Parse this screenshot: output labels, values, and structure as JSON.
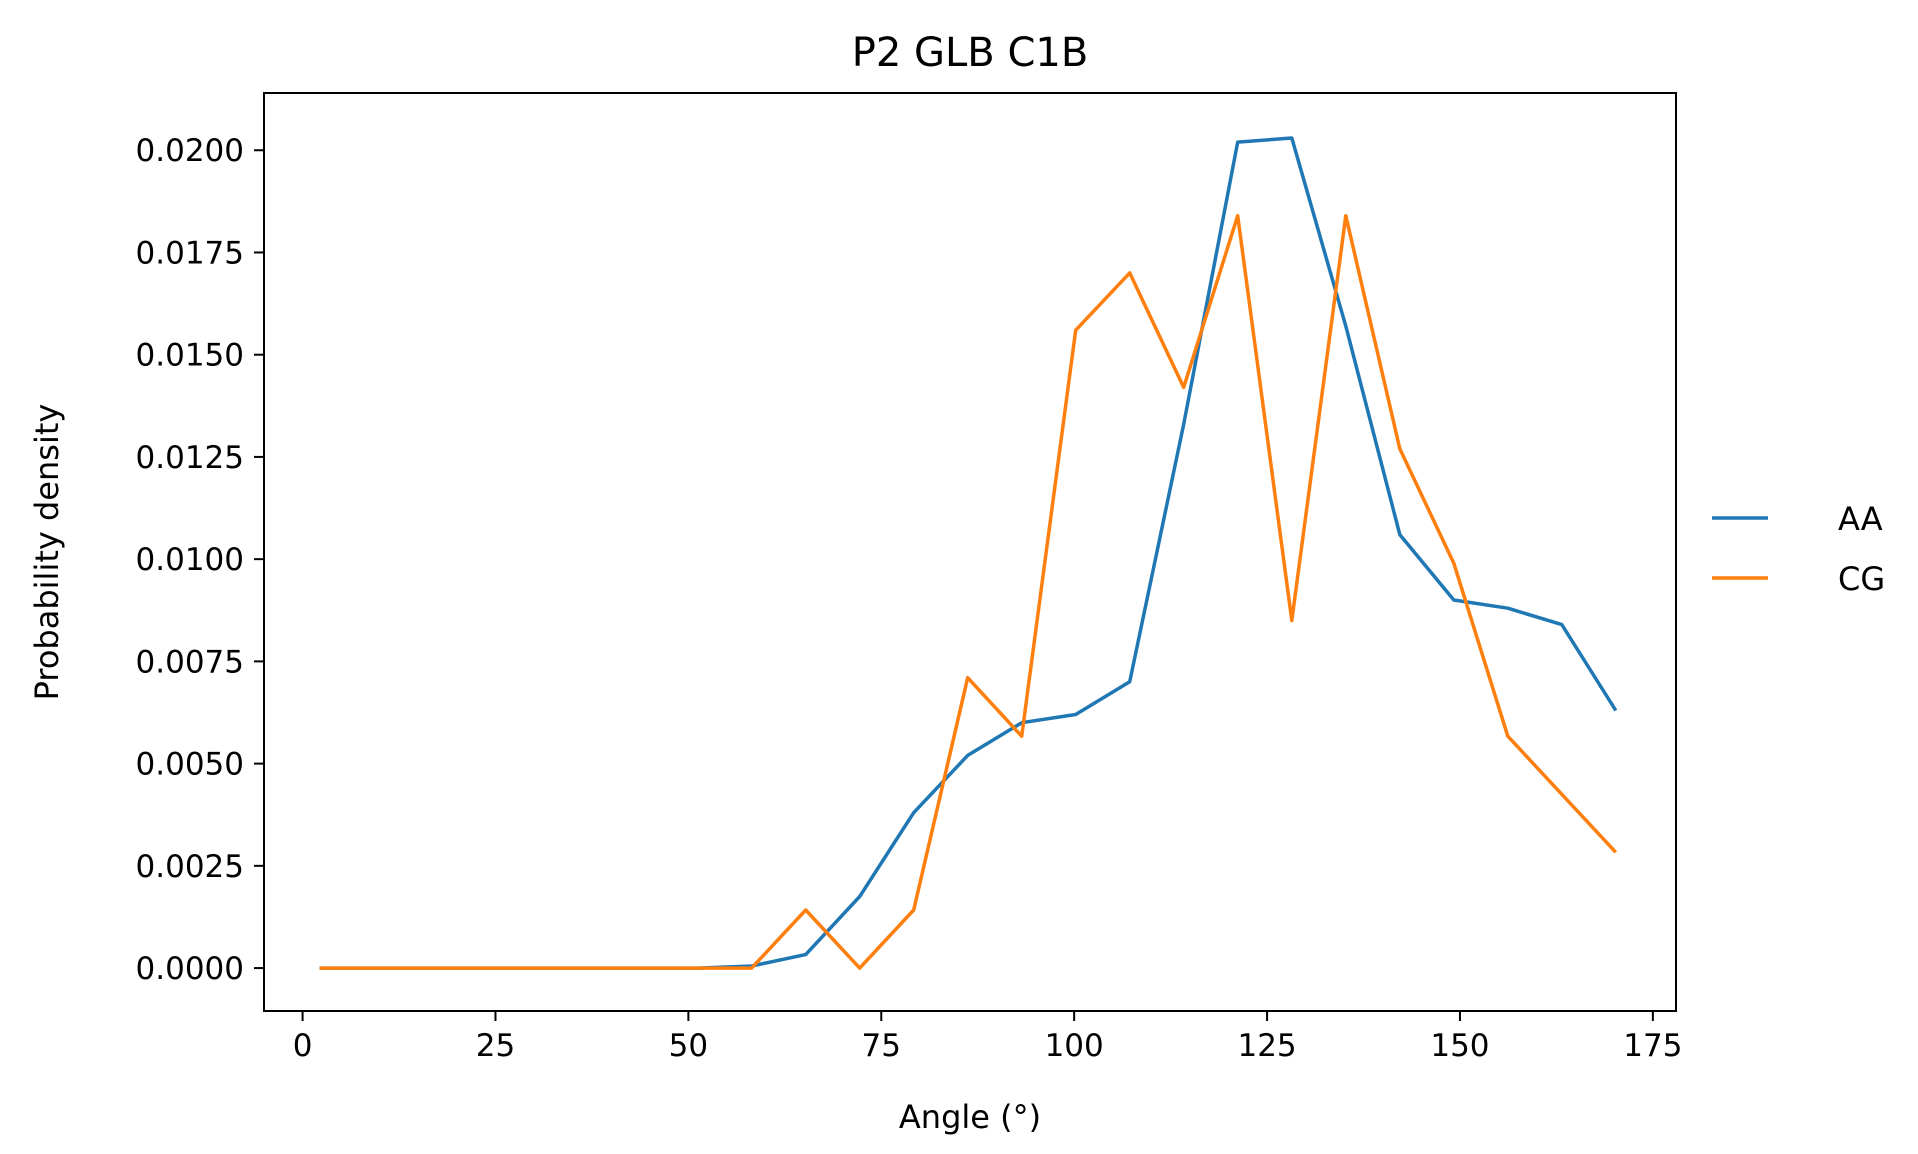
{
  "chart_data": {
    "type": "line",
    "title": "P2 GLB C1B",
    "xlabel": "Angle (°)",
    "ylabel": "Probability density",
    "xlim": [
      -5,
      178
    ],
    "ylim": [
      -0.00105,
      0.0214
    ],
    "xticks": [
      0,
      25,
      50,
      75,
      100,
      125,
      150,
      175
    ],
    "xtick_labels": [
      "0",
      "25",
      "50",
      "75",
      "100",
      "125",
      "150",
      "175"
    ],
    "yticks": [
      0,
      0.0025,
      0.005,
      0.0075,
      0.01,
      0.0125,
      0.015,
      0.0175,
      0.02
    ],
    "ytick_labels": [
      "0.0000",
      "0.0025",
      "0.0050",
      "0.0075",
      "0.0100",
      "0.0125",
      "0.0150",
      "0.0175",
      "0.0200"
    ],
    "grid": false,
    "legend_position": "right-outside",
    "x": [
      2.2,
      9.2,
      16.2,
      23.2,
      30.2,
      37.2,
      44.2,
      51.2,
      58.2,
      65.2,
      72.2,
      79.2,
      86.2,
      93.2,
      100.2,
      107.2,
      114.2,
      121.2,
      128.2,
      135.2,
      142.2,
      149.2,
      156.2,
      163.2,
      170.2
    ],
    "series": [
      {
        "name": "AA",
        "color": "#1f77b4",
        "values": [
          0,
          0,
          0,
          0,
          0,
          0,
          0,
          0,
          5e-05,
          0.00033,
          0.00175,
          0.0038,
          0.0052,
          0.006,
          0.0062,
          0.007,
          0.0133,
          0.0202,
          0.0203,
          0.0157,
          0.0106,
          0.009,
          0.0088,
          0.0084,
          0.0063
        ]
      },
      {
        "name": "CG",
        "color": "#ff7f0e",
        "values": [
          0,
          0,
          0,
          0,
          0,
          0,
          0,
          0,
          0,
          0.00142,
          0,
          0.00142,
          0.0071,
          0.00567,
          0.0156,
          0.017,
          0.0142,
          0.0184,
          0.0085,
          0.0184,
          0.0127,
          0.0099,
          0.00567,
          0.00425,
          0.00283
        ]
      }
    ]
  }
}
